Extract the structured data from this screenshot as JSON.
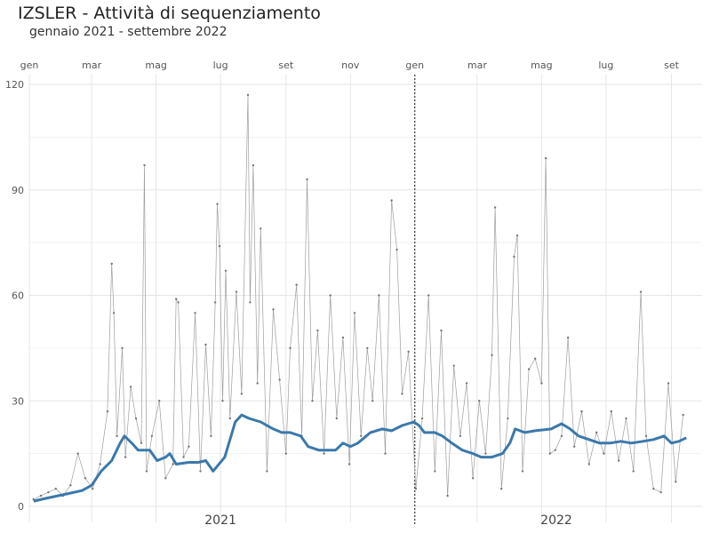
{
  "chart_data": {
    "type": "line",
    "title": "IZSLER - Attività di sequenziamento",
    "subtitle": "gennaio 2021 - settembre 2022",
    "xlabel": "",
    "ylabel": "",
    "ylim": [
      0,
      120
    ],
    "y_ticks": [
      0,
      30,
      60,
      90,
      120
    ],
    "x_range": [
      "2021-01-01",
      "2022-09-30"
    ],
    "month_ticks": [
      {
        "date": "2021-01-01",
        "label": "gen"
      },
      {
        "date": "2021-03-01",
        "label": "mar"
      },
      {
        "date": "2021-05-01",
        "label": "mag"
      },
      {
        "date": "2021-07-01",
        "label": "lug"
      },
      {
        "date": "2021-09-01",
        "label": "set"
      },
      {
        "date": "2021-11-01",
        "label": "nov"
      },
      {
        "date": "2022-01-01",
        "label": "gen"
      },
      {
        "date": "2022-03-01",
        "label": "mar"
      },
      {
        "date": "2022-05-01",
        "label": "mag"
      },
      {
        "date": "2022-07-01",
        "label": "lug"
      },
      {
        "date": "2022-09-01",
        "label": "set"
      }
    ],
    "year_labels": [
      {
        "date": "2021-07-01",
        "label": "2021"
      },
      {
        "date": "2022-05-15",
        "label": "2022"
      }
    ],
    "year_divider": "2022-01-01",
    "grid": true,
    "series": [
      {
        "role": "daily",
        "color": "#9e9e9e",
        "points": [
          [
            "2021-01-05",
            2
          ],
          [
            "2021-01-12",
            3
          ],
          [
            "2021-01-19",
            4
          ],
          [
            "2021-01-26",
            5
          ],
          [
            "2021-02-02",
            3
          ],
          [
            "2021-02-09",
            6
          ],
          [
            "2021-02-16",
            15
          ],
          [
            "2021-02-23",
            8
          ],
          [
            "2021-03-02",
            5
          ],
          [
            "2021-03-09",
            12
          ],
          [
            "2021-03-16",
            27
          ],
          [
            "2021-03-20",
            69
          ],
          [
            "2021-03-22",
            55
          ],
          [
            "2021-03-25",
            20
          ],
          [
            "2021-03-30",
            45
          ],
          [
            "2021-04-02",
            14
          ],
          [
            "2021-04-07",
            34
          ],
          [
            "2021-04-12",
            25
          ],
          [
            "2021-04-17",
            18
          ],
          [
            "2021-04-20",
            97
          ],
          [
            "2021-04-22",
            10
          ],
          [
            "2021-04-27",
            20
          ],
          [
            "2021-05-04",
            30
          ],
          [
            "2021-05-10",
            8
          ],
          [
            "2021-05-17",
            12
          ],
          [
            "2021-05-20",
            59
          ],
          [
            "2021-05-22",
            58
          ],
          [
            "2021-05-27",
            14
          ],
          [
            "2021-06-01",
            17
          ],
          [
            "2021-06-07",
            55
          ],
          [
            "2021-06-12",
            10
          ],
          [
            "2021-06-17",
            46
          ],
          [
            "2021-06-22",
            20
          ],
          [
            "2021-06-26",
            58
          ],
          [
            "2021-06-28",
            86
          ],
          [
            "2021-06-30",
            74
          ],
          [
            "2021-07-03",
            30
          ],
          [
            "2021-07-06",
            67
          ],
          [
            "2021-07-10",
            25
          ],
          [
            "2021-07-16",
            61
          ],
          [
            "2021-07-21",
            32
          ],
          [
            "2021-07-27",
            117
          ],
          [
            "2021-07-29",
            58
          ],
          [
            "2021-08-01",
            97
          ],
          [
            "2021-08-05",
            35
          ],
          [
            "2021-08-08",
            79
          ],
          [
            "2021-08-14",
            10
          ],
          [
            "2021-08-20",
            56
          ],
          [
            "2021-08-26",
            36
          ],
          [
            "2021-09-01",
            15
          ],
          [
            "2021-09-05",
            45
          ],
          [
            "2021-09-11",
            63
          ],
          [
            "2021-09-16",
            20
          ],
          [
            "2021-09-21",
            93
          ],
          [
            "2021-09-26",
            30
          ],
          [
            "2021-10-01",
            50
          ],
          [
            "2021-10-07",
            15
          ],
          [
            "2021-10-13",
            60
          ],
          [
            "2021-10-19",
            25
          ],
          [
            "2021-10-25",
            48
          ],
          [
            "2021-10-31",
            12
          ],
          [
            "2021-11-05",
            55
          ],
          [
            "2021-11-11",
            20
          ],
          [
            "2021-11-17",
            45
          ],
          [
            "2021-11-22",
            30
          ],
          [
            "2021-11-28",
            60
          ],
          [
            "2021-12-04",
            15
          ],
          [
            "2021-12-10",
            87
          ],
          [
            "2021-12-15",
            73
          ],
          [
            "2021-12-20",
            32
          ],
          [
            "2021-12-26",
            44
          ],
          [
            "2022-01-02",
            5
          ],
          [
            "2022-01-08",
            25
          ],
          [
            "2022-01-14",
            60
          ],
          [
            "2022-01-20",
            10
          ],
          [
            "2022-01-26",
            50
          ],
          [
            "2022-02-01",
            3
          ],
          [
            "2022-02-07",
            40
          ],
          [
            "2022-02-13",
            20
          ],
          [
            "2022-02-19",
            35
          ],
          [
            "2022-02-25",
            8
          ],
          [
            "2022-03-03",
            30
          ],
          [
            "2022-03-09",
            15
          ],
          [
            "2022-03-15",
            43
          ],
          [
            "2022-03-18",
            85
          ],
          [
            "2022-03-24",
            5
          ],
          [
            "2022-03-30",
            25
          ],
          [
            "2022-04-05",
            71
          ],
          [
            "2022-04-08",
            77
          ],
          [
            "2022-04-13",
            10
          ],
          [
            "2022-04-19",
            39
          ],
          [
            "2022-04-25",
            42
          ],
          [
            "2022-05-01",
            35
          ],
          [
            "2022-05-05",
            99
          ],
          [
            "2022-05-09",
            15
          ],
          [
            "2022-05-14",
            16
          ],
          [
            "2022-05-20",
            20
          ],
          [
            "2022-05-26",
            48
          ],
          [
            "2022-06-01",
            17
          ],
          [
            "2022-06-08",
            27
          ],
          [
            "2022-06-15",
            12
          ],
          [
            "2022-06-22",
            21
          ],
          [
            "2022-06-29",
            15
          ],
          [
            "2022-07-06",
            27
          ],
          [
            "2022-07-13",
            13
          ],
          [
            "2022-07-20",
            25
          ],
          [
            "2022-07-27",
            10
          ],
          [
            "2022-08-03",
            61
          ],
          [
            "2022-08-08",
            20
          ],
          [
            "2022-08-15",
            5
          ],
          [
            "2022-08-22",
            4
          ],
          [
            "2022-08-29",
            35
          ],
          [
            "2022-09-05",
            7
          ],
          [
            "2022-09-12",
            26
          ]
        ]
      },
      {
        "role": "moving-average",
        "color": "#3b78ab",
        "points": [
          [
            "2021-01-05",
            1.5
          ],
          [
            "2021-01-20",
            2.5
          ],
          [
            "2021-02-05",
            3.5
          ],
          [
            "2021-02-20",
            4.5
          ],
          [
            "2021-03-01",
            6
          ],
          [
            "2021-03-10",
            10
          ],
          [
            "2021-03-20",
            13
          ],
          [
            "2021-03-28",
            18
          ],
          [
            "2021-04-01",
            20
          ],
          [
            "2021-04-08",
            18
          ],
          [
            "2021-04-14",
            16
          ],
          [
            "2021-04-25",
            16
          ],
          [
            "2021-05-02",
            13
          ],
          [
            "2021-05-10",
            14
          ],
          [
            "2021-05-14",
            15
          ],
          [
            "2021-05-20",
            12
          ],
          [
            "2021-06-01",
            12.5
          ],
          [
            "2021-06-10",
            12.5
          ],
          [
            "2021-06-17",
            13
          ],
          [
            "2021-06-24",
            10
          ],
          [
            "2021-07-05",
            14
          ],
          [
            "2021-07-15",
            24
          ],
          [
            "2021-07-21",
            26
          ],
          [
            "2021-07-28",
            25
          ],
          [
            "2021-08-08",
            24
          ],
          [
            "2021-08-20",
            22
          ],
          [
            "2021-08-28",
            21
          ],
          [
            "2021-09-05",
            21
          ],
          [
            "2021-09-15",
            20
          ],
          [
            "2021-09-22",
            17
          ],
          [
            "2021-10-02",
            16
          ],
          [
            "2021-10-10",
            16
          ],
          [
            "2021-10-18",
            16
          ],
          [
            "2021-10-25",
            18
          ],
          [
            "2021-11-01",
            17
          ],
          [
            "2021-11-08",
            18
          ],
          [
            "2021-11-20",
            21
          ],
          [
            "2021-12-01",
            22
          ],
          [
            "2021-12-10",
            21.5
          ],
          [
            "2021-12-20",
            23
          ],
          [
            "2021-12-31",
            24
          ],
          [
            "2022-01-05",
            23
          ],
          [
            "2022-01-10",
            21
          ],
          [
            "2022-01-20",
            21
          ],
          [
            "2022-01-27",
            20
          ],
          [
            "2022-02-05",
            18
          ],
          [
            "2022-02-15",
            16
          ],
          [
            "2022-02-25",
            15
          ],
          [
            "2022-03-05",
            14
          ],
          [
            "2022-03-15",
            14
          ],
          [
            "2022-03-25",
            15
          ],
          [
            "2022-04-01",
            18
          ],
          [
            "2022-04-06",
            22
          ],
          [
            "2022-04-15",
            21
          ],
          [
            "2022-04-25",
            21.5
          ],
          [
            "2022-05-10",
            22
          ],
          [
            "2022-05-20",
            23.5
          ],
          [
            "2022-05-28",
            22
          ],
          [
            "2022-06-05",
            20
          ],
          [
            "2022-06-15",
            19
          ],
          [
            "2022-06-25",
            18
          ],
          [
            "2022-07-05",
            18
          ],
          [
            "2022-07-15",
            18.5
          ],
          [
            "2022-07-25",
            18
          ],
          [
            "2022-08-05",
            18.5
          ],
          [
            "2022-08-15",
            19
          ],
          [
            "2022-08-25",
            20
          ],
          [
            "2022-09-01",
            18
          ],
          [
            "2022-09-08",
            18.5
          ],
          [
            "2022-09-15",
            19.5
          ]
        ]
      }
    ]
  }
}
